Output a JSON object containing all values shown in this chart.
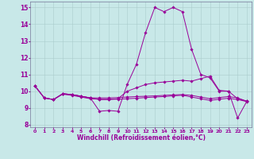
{
  "xlabel": "Windchill (Refroidissement éolien,°C)",
  "xlim": [
    -0.5,
    23.5
  ],
  "ylim": [
    7.85,
    15.35
  ],
  "xticks": [
    0,
    1,
    2,
    3,
    4,
    5,
    6,
    7,
    8,
    9,
    10,
    11,
    12,
    13,
    14,
    15,
    16,
    17,
    18,
    19,
    20,
    21,
    22,
    23
  ],
  "yticks": [
    8,
    9,
    10,
    11,
    12,
    13,
    14,
    15
  ],
  "background_color": "#c8e8e8",
  "line_color": "#990099",
  "grid_color": "#aacccc",
  "lines": [
    {
      "x": [
        0,
        1,
        2,
        3,
        4,
        5,
        6,
        7,
        8,
        9,
        10,
        11,
        12,
        13,
        14,
        15,
        16,
        17,
        18,
        19,
        20,
        21,
        22,
        23
      ],
      "y": [
        10.3,
        9.6,
        9.5,
        9.85,
        9.8,
        9.7,
        9.6,
        8.8,
        8.85,
        8.8,
        10.4,
        11.6,
        13.5,
        15.0,
        14.75,
        15.0,
        14.75,
        12.5,
        11.0,
        10.8,
        10.0,
        10.0,
        8.4,
        9.4
      ]
    },
    {
      "x": [
        0,
        1,
        2,
        3,
        4,
        5,
        6,
        7,
        8,
        9,
        10,
        11,
        12,
        13,
        14,
        15,
        16,
        17,
        18,
        19,
        20,
        21,
        22,
        23
      ],
      "y": [
        10.3,
        9.6,
        9.5,
        9.85,
        9.8,
        9.7,
        9.6,
        9.5,
        9.5,
        9.55,
        10.0,
        10.2,
        10.4,
        10.5,
        10.55,
        10.6,
        10.65,
        10.6,
        10.75,
        10.9,
        10.05,
        10.0,
        9.55,
        9.4
      ]
    },
    {
      "x": [
        0,
        1,
        2,
        3,
        4,
        5,
        6,
        7,
        8,
        9,
        10,
        11,
        12,
        13,
        14,
        15,
        16,
        17,
        18,
        19,
        20,
        21,
        22,
        23
      ],
      "y": [
        10.3,
        9.6,
        9.5,
        9.85,
        9.8,
        9.7,
        9.6,
        9.6,
        9.6,
        9.62,
        9.65,
        9.68,
        9.7,
        9.72,
        9.75,
        9.78,
        9.8,
        9.75,
        9.65,
        9.55,
        9.62,
        9.68,
        9.6,
        9.4
      ]
    },
    {
      "x": [
        0,
        1,
        2,
        3,
        4,
        5,
        6,
        7,
        8,
        9,
        10,
        11,
        12,
        13,
        14,
        15,
        16,
        17,
        18,
        19,
        20,
        21,
        22,
        23
      ],
      "y": [
        10.3,
        9.6,
        9.5,
        9.82,
        9.75,
        9.65,
        9.55,
        9.52,
        9.52,
        9.52,
        9.55,
        9.58,
        9.62,
        9.65,
        9.68,
        9.72,
        9.76,
        9.65,
        9.55,
        9.45,
        9.52,
        9.58,
        9.5,
        9.38
      ]
    }
  ]
}
